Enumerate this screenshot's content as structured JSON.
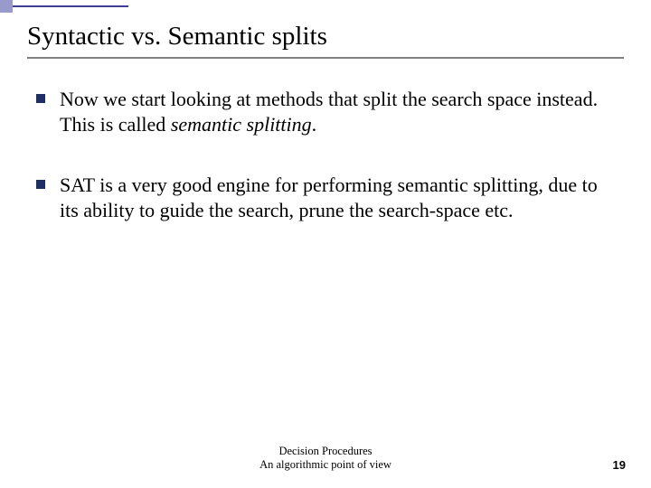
{
  "decoration": {
    "square_color": "#9999cc",
    "line_color": "#3f3f8f"
  },
  "title": "Syntactic vs. Semantic splits",
  "underline_color": "#808080",
  "bullets": [
    {
      "marker_color": "#1f2f66",
      "segments": [
        {
          "text": "Now we start looking at methods that split the search space instead. This is called ",
          "italic": false
        },
        {
          "text": "semantic splitting",
          "italic": true
        },
        {
          "text": ".",
          "italic": false
        }
      ]
    },
    {
      "marker_color": "#1f2f66",
      "segments": [
        {
          "text": "SAT is a very good engine for performing semantic splitting, due to its ability to guide the search, prune the search-space etc.",
          "italic": false
        }
      ]
    }
  ],
  "footer": {
    "line1": "Decision Procedures",
    "line2": "An algorithmic point of view"
  },
  "page_number": "19"
}
